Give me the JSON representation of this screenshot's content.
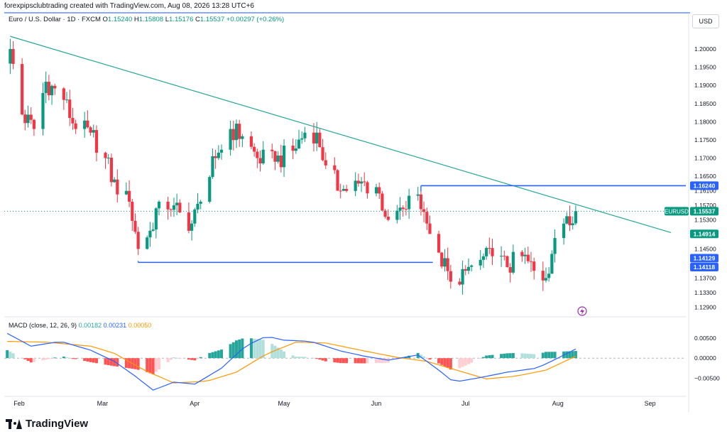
{
  "header": {
    "credit": "forexpipsclubtrading created with TradingView.com, Aug 08, 2026 13:28 UTC+6"
  },
  "symbol": {
    "name": "Euro / U.S. Dollar · 1D · FXCM",
    "open_label": "O",
    "open": "1.15240",
    "high_label": "H",
    "high": "1.15808",
    "low_label": "L",
    "low": "1.15176",
    "close_label": "C",
    "close": "1.15537",
    "change": "+0.00297 (+0.26%)"
  },
  "currency": "USD",
  "colors": {
    "up": "#089981",
    "down": "#f23645",
    "trend": "#26a69a",
    "level": "#2962ff",
    "macd": "#2962ff",
    "signal": "#ff9800"
  },
  "chart_data": [
    {
      "type": "candlestick",
      "title": "",
      "y_axis": {
        "position": "right",
        "ticks": [
          1.2,
          1.195,
          1.19,
          1.185,
          1.18,
          1.175,
          1.17,
          1.165,
          1.161,
          1.157,
          1.153,
          1.145,
          1.137,
          1.133,
          1.129
        ],
        "tick_labels": [
          "1.20000",
          "1.19500",
          "1.19000",
          "1.18500",
          "1.18000",
          "1.17500",
          "1.17000",
          "1.16500",
          "1.16100",
          "1.15700",
          "1.15300",
          "1.14500",
          "1.13700",
          "1.13300",
          "1.12900"
        ],
        "range": [
          1.1275,
          1.2045
        ]
      },
      "x_axis": {
        "labels": [
          {
            "label": "Feb",
            "date": "2026-02-01"
          },
          {
            "label": "Mar",
            "date": "2026-03-01"
          },
          {
            "label": "Apr",
            "date": "2026-04-01"
          },
          {
            "label": "May",
            "date": "2026-05-01"
          },
          {
            "label": "Jun",
            "date": "2026-06-01"
          },
          {
            "label": "Jul",
            "date": "2026-07-01"
          },
          {
            "label": "Aug",
            "date": "2026-08-01"
          },
          {
            "label": "Sep",
            "date": "2026-09-01"
          }
        ],
        "range": [
          "2026-01-27",
          "2026-09-13"
        ]
      },
      "price_key_points": [
        {
          "date": "2026-01-28",
          "price": 1.196
        },
        {
          "date": "2026-01-29",
          "price": 1.2
        },
        {
          "date": "2026-02-02",
          "price": 1.182
        },
        {
          "date": "2026-02-06",
          "price": 1.178
        },
        {
          "date": "2026-02-10",
          "price": 1.191
        },
        {
          "date": "2026-02-16",
          "price": 1.186
        },
        {
          "date": "2026-02-20",
          "price": 1.178
        },
        {
          "date": "2026-02-25",
          "price": 1.177
        },
        {
          "date": "2026-03-02",
          "price": 1.17
        },
        {
          "date": "2026-03-06",
          "price": 1.16
        },
        {
          "date": "2026-03-10",
          "price": 1.158
        },
        {
          "date": "2026-03-13",
          "price": 1.145
        },
        {
          "date": "2026-03-17",
          "price": 1.15
        },
        {
          "date": "2026-03-20",
          "price": 1.158
        },
        {
          "date": "2026-03-25",
          "price": 1.157
        },
        {
          "date": "2026-03-30",
          "price": 1.15
        },
        {
          "date": "2026-04-03",
          "price": 1.158
        },
        {
          "date": "2026-04-08",
          "price": 1.17
        },
        {
          "date": "2026-04-13",
          "price": 1.178
        },
        {
          "date": "2026-04-17",
          "price": 1.176
        },
        {
          "date": "2026-04-22",
          "price": 1.17
        },
        {
          "date": "2026-04-28",
          "price": 1.169
        },
        {
          "date": "2026-05-04",
          "price": 1.172
        },
        {
          "date": "2026-05-08",
          "price": 1.177
        },
        {
          "date": "2026-05-12",
          "price": 1.177
        },
        {
          "date": "2026-05-15",
          "price": 1.168
        },
        {
          "date": "2026-05-20",
          "price": 1.161
        },
        {
          "date": "2026-05-26",
          "price": 1.163
        },
        {
          "date": "2026-06-01",
          "price": 1.162
        },
        {
          "date": "2026-06-05",
          "price": 1.153
        },
        {
          "date": "2026-06-10",
          "price": 1.156
        },
        {
          "date": "2026-06-15",
          "price": 1.16
        },
        {
          "date": "2026-06-18",
          "price": 1.152
        },
        {
          "date": "2026-06-22",
          "price": 1.144
        },
        {
          "date": "2026-06-26",
          "price": 1.136
        },
        {
          "date": "2026-07-01",
          "price": 1.139
        },
        {
          "date": "2026-07-06",
          "price": 1.142
        },
        {
          "date": "2026-07-10",
          "price": 1.143
        },
        {
          "date": "2026-07-15",
          "price": 1.14
        },
        {
          "date": "2026-07-20",
          "price": 1.143
        },
        {
          "date": "2026-07-24",
          "price": 1.139
        },
        {
          "date": "2026-07-28",
          "price": 1.137
        },
        {
          "date": "2026-07-31",
          "price": 1.148
        },
        {
          "date": "2026-08-04",
          "price": 1.154
        },
        {
          "date": "2026-08-07",
          "price": 1.1554
        }
      ],
      "trendline": {
        "start": {
          "date": "2026-01-29",
          "price": 1.2035
        },
        "end": {
          "date": "2026-09-08",
          "price": 1.1495
        }
      },
      "horizontal_levels": [
        {
          "start": "2026-06-16",
          "end": "2026-09-14",
          "price": 1.1624
        },
        {
          "start": "2026-03-13",
          "end": "2026-06-20",
          "price": 1.1413
        }
      ],
      "current_price": 1.15537,
      "price_labels": [
        {
          "text": "1.16240",
          "price": 1.1624,
          "style": "level"
        },
        {
          "text": "EURUSD",
          "price": 1.15537,
          "style": "symbol"
        },
        {
          "text": "1.15537",
          "price": 1.15537,
          "style": "up"
        },
        {
          "text": "1.14914",
          "price": 1.14914,
          "style": "up"
        },
        {
          "text": "1.14129",
          "price": 1.14129,
          "style": "level"
        },
        {
          "text": "1.14118",
          "price": 1.14118,
          "style": "level"
        }
      ]
    },
    {
      "type": "macd",
      "legend": {
        "name": "MACD (close, 12, 26, 9)",
        "histogram": "0.00182",
        "macd": "0.00231",
        "signal": "0.00050"
      },
      "y_axis": {
        "ticks": [
          0.005,
          0.0,
          -0.005
        ],
        "tick_labels": [
          "0.00500",
          "0.00000",
          "−0.00500"
        ],
        "range": [
          -0.0085,
          0.0075
        ]
      },
      "macd_key_points": [
        {
          "date": "2026-01-28",
          "value": 0.0062
        },
        {
          "date": "2026-02-05",
          "value": 0.003
        },
        {
          "date": "2026-02-15",
          "value": 0.0042
        },
        {
          "date": "2026-02-25",
          "value": 0.002
        },
        {
          "date": "2026-03-05",
          "value": -0.0008
        },
        {
          "date": "2026-03-12",
          "value": -0.0045
        },
        {
          "date": "2026-03-18",
          "value": -0.008
        },
        {
          "date": "2026-03-25",
          "value": -0.006
        },
        {
          "date": "2026-04-01",
          "value": -0.0065
        },
        {
          "date": "2026-04-10",
          "value": -0.0025
        },
        {
          "date": "2026-04-18",
          "value": 0.003
        },
        {
          "date": "2026-04-25",
          "value": 0.0055
        },
        {
          "date": "2026-05-01",
          "value": 0.0045
        },
        {
          "date": "2026-05-10",
          "value": 0.0042
        },
        {
          "date": "2026-05-20",
          "value": 0.0018
        },
        {
          "date": "2026-05-28",
          "value": 0.0005
        },
        {
          "date": "2026-06-05",
          "value": -0.0005
        },
        {
          "date": "2026-06-15",
          "value": 0.0008
        },
        {
          "date": "2026-06-22",
          "value": -0.003
        },
        {
          "date": "2026-06-27",
          "value": -0.006
        },
        {
          "date": "2026-07-05",
          "value": -0.005
        },
        {
          "date": "2026-07-15",
          "value": -0.0035
        },
        {
          "date": "2026-07-25",
          "value": -0.0025
        },
        {
          "date": "2026-08-01",
          "value": 0.0
        },
        {
          "date": "2026-08-07",
          "value": 0.0023
        }
      ],
      "signal_key_points": [
        {
          "date": "2026-01-28",
          "value": 0.0042
        },
        {
          "date": "2026-02-10",
          "value": 0.004
        },
        {
          "date": "2026-02-25",
          "value": 0.003
        },
        {
          "date": "2026-03-05",
          "value": 0.0012
        },
        {
          "date": "2026-03-15",
          "value": -0.003
        },
        {
          "date": "2026-03-25",
          "value": -0.0062
        },
        {
          "date": "2026-04-05",
          "value": -0.0058
        },
        {
          "date": "2026-04-15",
          "value": -0.0035
        },
        {
          "date": "2026-04-25",
          "value": 0.001
        },
        {
          "date": "2026-05-05",
          "value": 0.004
        },
        {
          "date": "2026-05-15",
          "value": 0.0038
        },
        {
          "date": "2026-05-28",
          "value": 0.0018
        },
        {
          "date": "2026-06-08",
          "value": 0.0002
        },
        {
          "date": "2026-06-18",
          "value": -0.0008
        },
        {
          "date": "2026-06-28",
          "value": -0.003
        },
        {
          "date": "2026-07-08",
          "value": -0.0052
        },
        {
          "date": "2026-07-18",
          "value": -0.0045
        },
        {
          "date": "2026-07-28",
          "value": -0.003
        },
        {
          "date": "2026-08-07",
          "value": 0.0005
        }
      ]
    }
  ],
  "brand": {
    "name": "TradingView"
  }
}
